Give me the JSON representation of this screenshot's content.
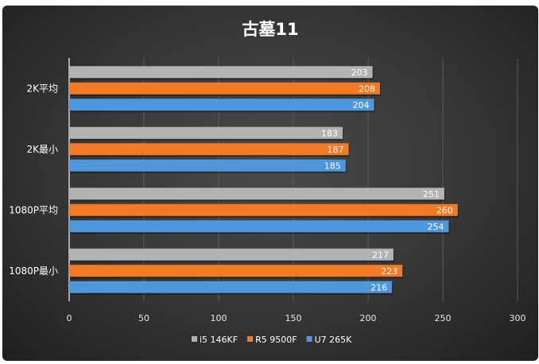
{
  "chart_data": {
    "type": "bar",
    "orientation": "horizontal",
    "title": "古墓11",
    "categories": [
      "2K平均",
      "2K最小",
      "1080P平均",
      "1080P最小"
    ],
    "series": [
      {
        "name": "i5 146KF",
        "color": "#b3b3b3",
        "values": [
          203,
          183,
          251,
          217
        ]
      },
      {
        "name": "R5 9500F",
        "color": "#f47a26",
        "values": [
          208,
          187,
          260,
          223
        ]
      },
      {
        "name": "U7 265K",
        "color": "#4f97dc",
        "values": [
          204,
          185,
          254,
          216
        ]
      }
    ],
    "xlim": [
      0,
      300
    ],
    "xticks": [
      0,
      50,
      100,
      150,
      200,
      250,
      300
    ],
    "grid": true,
    "legend": "bottom",
    "data_labels": true
  }
}
